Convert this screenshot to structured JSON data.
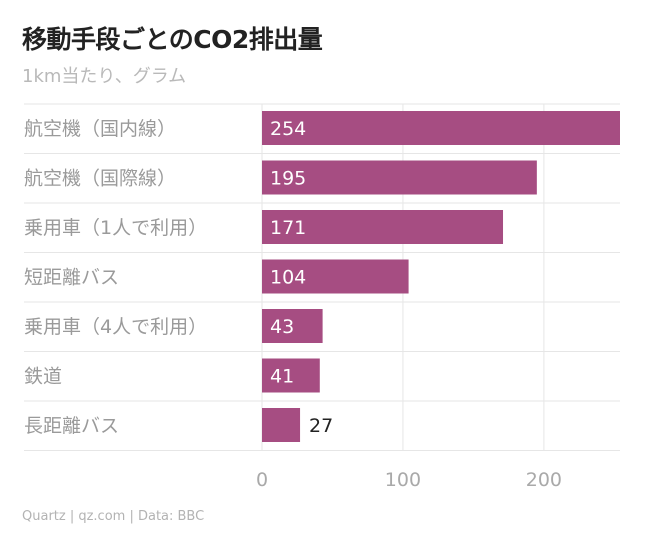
{
  "title": "移動手段ごとのCO2排出量",
  "subtitle": "1km当たり、グラム",
  "source": "Quartz | qz.com | Data: BBC",
  "colors": {
    "bar": "#a64d82",
    "grid": "#e6e6e6"
  },
  "chart_data": {
    "type": "bar",
    "orientation": "horizontal",
    "categories": [
      "航空機（国内線）",
      "航空機（国際線）",
      "乗用車（1人で利用）",
      "短距離バス",
      "乗用車（4人で利用）",
      "鉄道",
      "長距離バス"
    ],
    "values": [
      254,
      195,
      171,
      104,
      43,
      41,
      27
    ],
    "xlim": [
      0,
      254
    ],
    "xticks": [
      0,
      100,
      200
    ],
    "grid": true
  }
}
